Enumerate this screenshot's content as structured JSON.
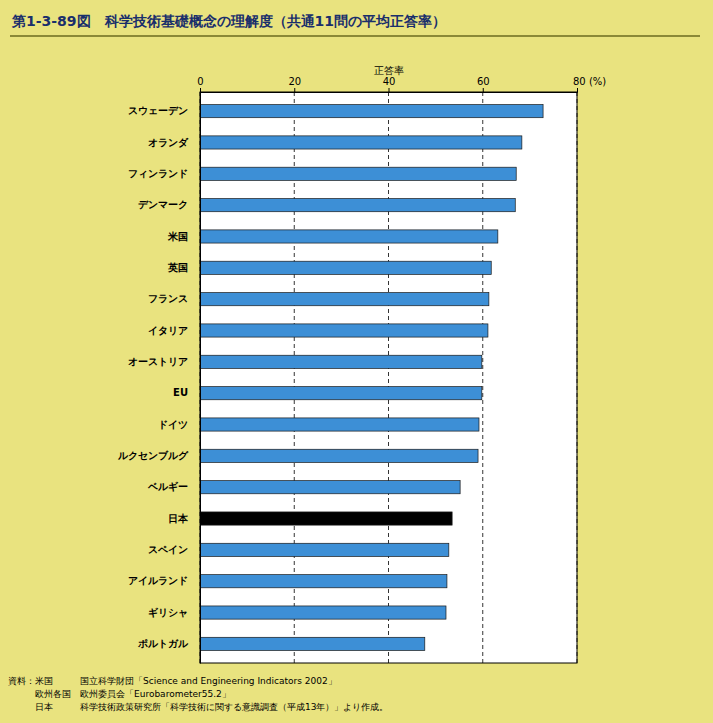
{
  "chart_data": {
    "type": "bar",
    "orientation": "horizontal",
    "title": "第1-3-89図　科学技術基礎概念の理解度（共通11問の平均正答率）",
    "x_label": "正答率",
    "categories": [
      "スウェーデン",
      "オランダ",
      "フィンランド",
      "デンマーク",
      "米国",
      "英国",
      "フランス",
      "イタリア",
      "オーストリア",
      "EU",
      "ドイツ",
      "ルクセンブルグ",
      "ベルギー",
      "日本",
      "スペイン",
      "アイルランド",
      "ギリシャ",
      "ポルトガル"
    ],
    "values": [
      72.8,
      68.3,
      67.1,
      66.9,
      63.2,
      61.8,
      61.3,
      61.1,
      59.8,
      59.8,
      59.2,
      59.0,
      55.2,
      53.5,
      52.8,
      52.4,
      52.2,
      47.7
    ],
    "colors": [
      "#3d8fd6",
      "#3d8fd6",
      "#3d8fd6",
      "#3d8fd6",
      "#3d8fd6",
      "#3d8fd6",
      "#3d8fd6",
      "#3d8fd6",
      "#3d8fd6",
      "#3d8fd6",
      "#3d8fd6",
      "#3d8fd6",
      "#3d8fd6",
      "#000000",
      "#3d8fd6",
      "#3d8fd6",
      "#3d8fd6",
      "#3d8fd6"
    ],
    "xlim": [
      0,
      80
    ],
    "xticks": [
      0,
      20,
      40,
      60,
      {
        "value": 80,
        "label": "80 (%)"
      }
    ],
    "grid": true,
    "annotations": [
      "資料：米国　　　国立科学財団「Science and Engineering Indicators 2002」",
      "　　　欧州各国　欧州委員会「Eurobarometer55.2」",
      "　　　日本　　　科学技術政策研究所「科学技術に関する意識調査（平成13年）」より作成。"
    ]
  }
}
